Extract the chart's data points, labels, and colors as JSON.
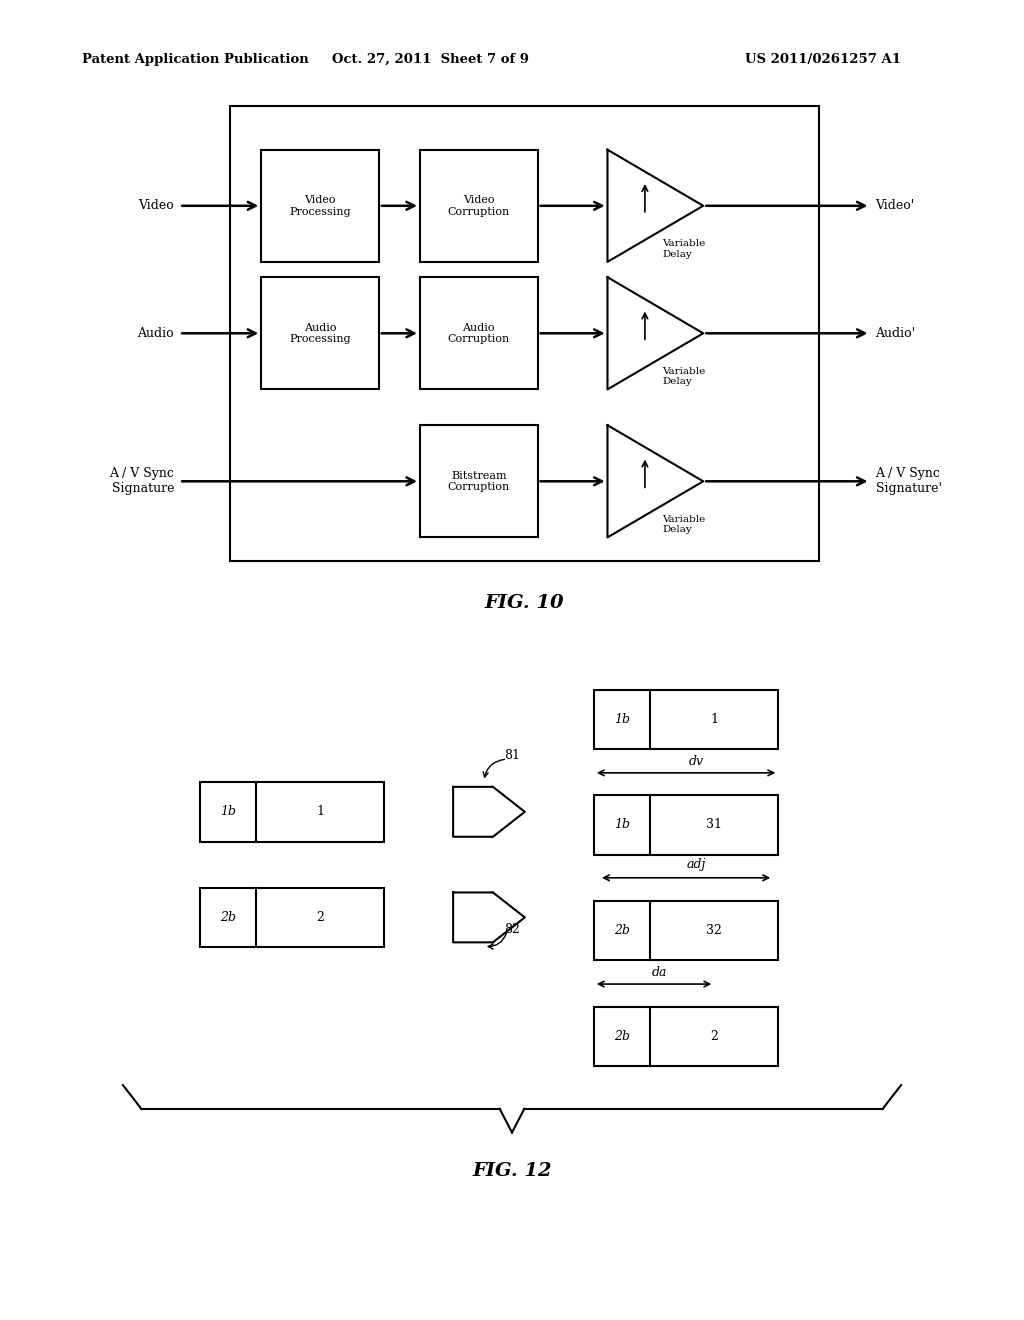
{
  "bg_color": "#ffffff",
  "header_left": "Patent Application Publication",
  "header_center": "Oct. 27, 2011  Sheet 7 of 9",
  "header_right": "US 2011/0261257 A1",
  "fig10_label": "FIG. 10",
  "fig12_label": "FIG. 12"
}
